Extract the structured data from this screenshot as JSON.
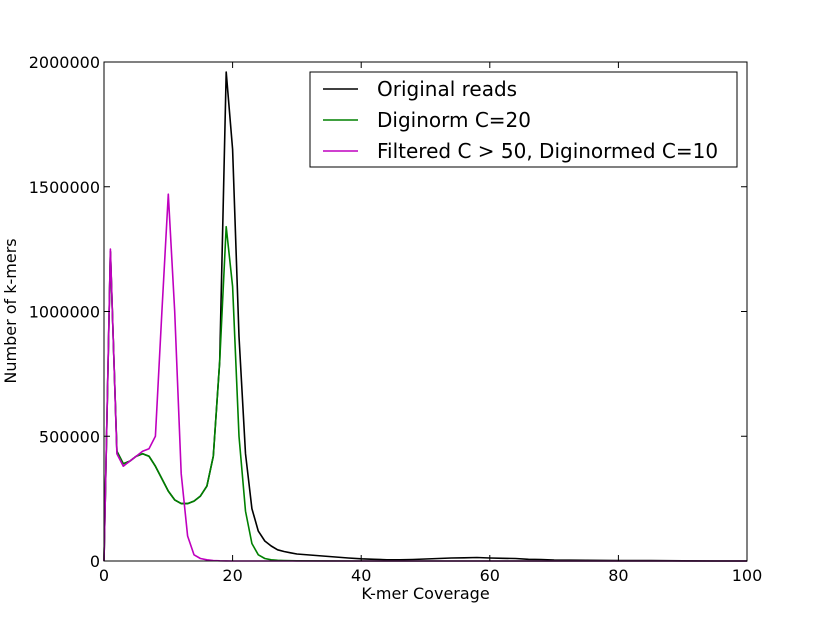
{
  "chart_data": {
    "type": "line",
    "xlabel": "K-mer Coverage",
    "ylabel": "Number of k-mers",
    "xlim": [
      0,
      100
    ],
    "ylim": [
      0,
      2000000
    ],
    "xticks": [
      "0",
      "20",
      "40",
      "60",
      "80",
      "100"
    ],
    "yticks": [
      "0",
      "500000",
      "1000000",
      "1500000",
      "2000000"
    ],
    "grid": false,
    "legend_position": "top-right",
    "series": [
      {
        "name": "Original reads",
        "color": "#000000",
        "x": [
          0,
          1,
          2,
          3,
          4,
          5,
          6,
          7,
          8,
          9,
          10,
          11,
          12,
          13,
          14,
          15,
          16,
          17,
          18,
          19,
          20,
          21,
          22,
          23,
          24,
          25,
          26,
          27,
          28,
          29,
          30,
          32,
          34,
          36,
          38,
          40,
          42,
          44,
          46,
          48,
          50,
          52,
          54,
          56,
          58,
          60,
          62,
          64,
          66,
          68,
          70,
          75,
          80,
          85,
          90,
          95,
          100
        ],
        "y": [
          0,
          1240000,
          440000,
          390000,
          400000,
          420000,
          430000,
          420000,
          380000,
          330000,
          280000,
          245000,
          230000,
          230000,
          240000,
          260000,
          300000,
          420000,
          800000,
          1960000,
          1650000,
          900000,
          430000,
          210000,
          120000,
          80000,
          60000,
          45000,
          38000,
          33000,
          28000,
          24000,
          20000,
          16000,
          12000,
          9000,
          7000,
          5000,
          5000,
          6000,
          8000,
          10000,
          12000,
          13000,
          14000,
          12000,
          11000,
          10000,
          7000,
          6000,
          4000,
          3000,
          2000,
          2000,
          1000,
          0,
          0
        ]
      },
      {
        "name": "Diginorm C=20",
        "color": "#008000",
        "x": [
          0,
          1,
          2,
          3,
          4,
          5,
          6,
          7,
          8,
          9,
          10,
          11,
          12,
          13,
          14,
          15,
          16,
          17,
          18,
          19,
          20,
          21,
          22,
          23,
          24,
          25,
          26,
          27,
          28,
          30,
          35,
          40,
          100
        ],
        "y": [
          0,
          1240000,
          440000,
          390000,
          400000,
          420000,
          430000,
          420000,
          380000,
          330000,
          280000,
          245000,
          230000,
          230000,
          240000,
          260000,
          300000,
          420000,
          800000,
          1340000,
          1100000,
          500000,
          200000,
          70000,
          25000,
          10000,
          5000,
          3000,
          2000,
          1000,
          500,
          0,
          0
        ]
      },
      {
        "name": "Filtered C > 50, Diginormed C=10",
        "color": "#bf00bf",
        "x": [
          0,
          1,
          2,
          3,
          4,
          5,
          6,
          7,
          8,
          9,
          10,
          11,
          12,
          13,
          14,
          15,
          16,
          17,
          18,
          19,
          20,
          22,
          25,
          30,
          100
        ],
        "y": [
          0,
          1250000,
          430000,
          380000,
          400000,
          420000,
          440000,
          450000,
          500000,
          1000000,
          1470000,
          1000000,
          350000,
          100000,
          25000,
          10000,
          5000,
          2000,
          1000,
          500,
          0,
          0,
          0,
          0,
          0
        ]
      }
    ]
  }
}
